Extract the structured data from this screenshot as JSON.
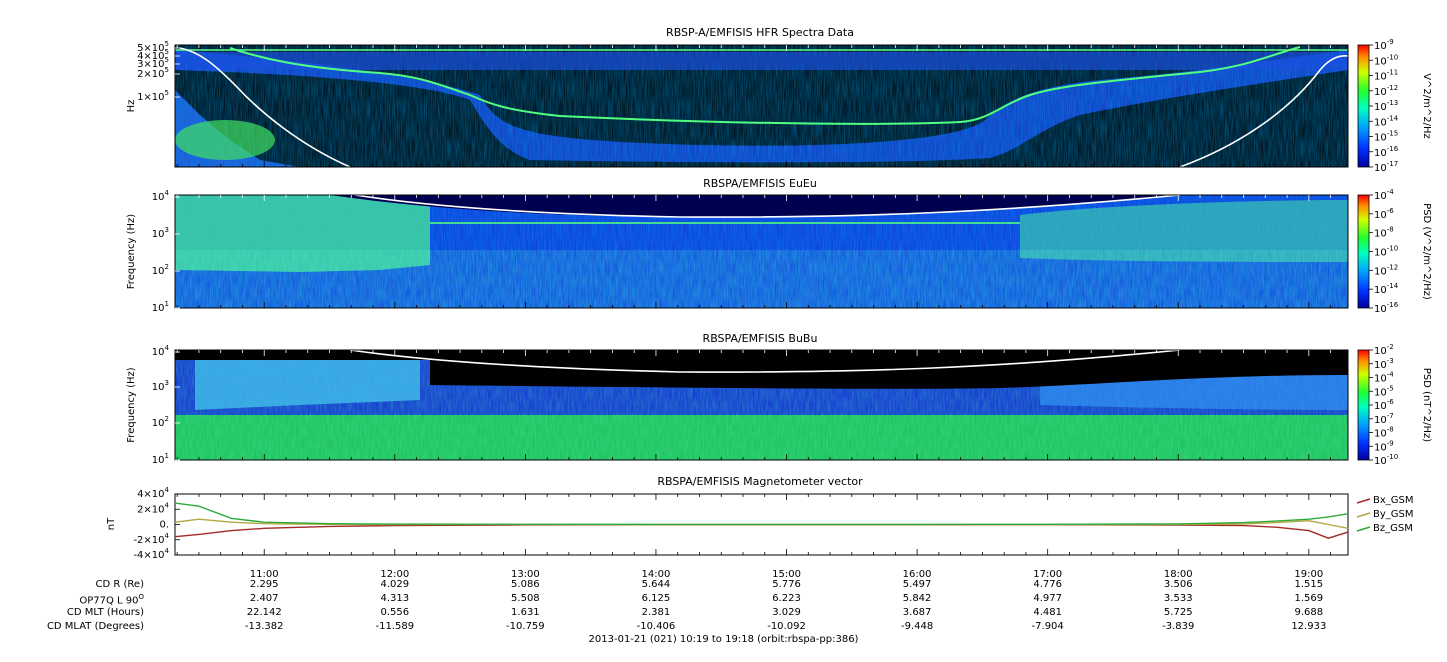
{
  "panels": [
    {
      "id": "hfr",
      "title": "RBSP-A/EMFISIS  HFR Spectra Data",
      "ylabel": "Hz",
      "y_ticks": [
        {
          "label": "5×10",
          "exp": "5"
        },
        {
          "label": "4×10",
          "exp": "5"
        },
        {
          "label": "3×10",
          "exp": "5"
        },
        {
          "label": "2×10",
          "exp": "5"
        },
        {
          "label": "1×10",
          "exp": "5"
        }
      ],
      "colorbar_label": "V^2/m^2/Hz",
      "colorbar_ticks": [
        "-9",
        "-10",
        "-11",
        "-12",
        "-13",
        "-14",
        "-15",
        "-16",
        "-17"
      ]
    },
    {
      "id": "eueu",
      "title": "RBSPA/EMFISIS  EuEu",
      "ylabel": "Frequency (Hz)",
      "y_ticks": [
        {
          "label": "10",
          "exp": "4"
        },
        {
          "label": "10",
          "exp": "3"
        },
        {
          "label": "10",
          "exp": "2"
        },
        {
          "label": "10",
          "exp": "1"
        }
      ],
      "colorbar_label": "PSD (V^2/m^2/Hz)",
      "colorbar_ticks": [
        "-4",
        "-6",
        "-8",
        "-10",
        "-12",
        "-14",
        "-16"
      ]
    },
    {
      "id": "bubu",
      "title": "RBSPA/EMFISIS  BuBu",
      "ylabel": "Frequency (Hz)",
      "y_ticks": [
        {
          "label": "10",
          "exp": "4"
        },
        {
          "label": "10",
          "exp": "3"
        },
        {
          "label": "10",
          "exp": "2"
        },
        {
          "label": "10",
          "exp": "1"
        }
      ],
      "colorbar_label": "PSD (nT^2/Hz)",
      "colorbar_ticks": [
        "-2",
        "-3",
        "-4",
        "-5",
        "-6",
        "-7",
        "-8",
        "-9",
        "-10"
      ]
    }
  ],
  "chart_data": [
    {
      "type": "heatmap",
      "title": "RBSP-A/EMFISIS  HFR Spectra Data",
      "ylabel": "Hz",
      "ylim": [
        10000,
        500000
      ],
      "colorbar": {
        "label": "V^2/m^2/Hz",
        "range": [
          -17,
          -9
        ]
      },
      "x_range": [
        "10:19",
        "19:18"
      ]
    },
    {
      "type": "heatmap",
      "title": "RBSPA/EMFISIS  EuEu",
      "ylabel": "Frequency (Hz)",
      "ylim": [
        10,
        10000
      ],
      "colorbar": {
        "label": "PSD (V^2/m^2/Hz)",
        "range": [
          -16,
          -4
        ]
      },
      "x_range": [
        "10:19",
        "19:18"
      ]
    },
    {
      "type": "heatmap",
      "title": "RBSPA/EMFISIS  BuBu",
      "ylabel": "Frequency (Hz)",
      "ylim": [
        10,
        10000
      ],
      "colorbar": {
        "label": "PSD (nT^2/Hz)",
        "range": [
          -10,
          -2
        ]
      },
      "x_range": [
        "10:19",
        "19:18"
      ]
    },
    {
      "type": "line",
      "title": "RBSPA/EMFISIS  Magnetometer vector",
      "ylabel": "nT",
      "ylim": [
        -40000,
        40000
      ],
      "y_ticks": [
        {
          "label": "4×10",
          "exp": "4"
        },
        {
          "label": "2×10",
          "exp": "4"
        },
        {
          "label": "0.",
          "exp": ""
        },
        {
          "label": "-2×10",
          "exp": "4"
        },
        {
          "label": "-4×10",
          "exp": "4"
        }
      ],
      "x_hours": [
        10.3,
        10.5,
        10.75,
        11,
        11.5,
        12,
        13,
        14,
        15,
        16,
        17,
        18,
        18.5,
        18.75,
        19,
        19.15,
        19.3
      ],
      "series": [
        {
          "name": "Bx_GSM",
          "color": "#a52a2a",
          "values": [
            -16000,
            -13000,
            -8000,
            -5000,
            -2500,
            -1500,
            -500,
            -300,
            -200,
            -200,
            -300,
            -600,
            -1500,
            -3500,
            -8000,
            -18000,
            -10000
          ]
        },
        {
          "name": "By_GSM",
          "color": "#b5a642",
          "values": [
            3000,
            7000,
            3000,
            1000,
            300,
            100,
            0,
            0,
            0,
            0,
            0,
            100,
            800,
            2500,
            5000,
            0,
            -5000
          ]
        },
        {
          "name": "Bz_GSM",
          "color": "#2eaa3a",
          "values": [
            28000,
            24000,
            8000,
            3000,
            1000,
            500,
            200,
            100,
            100,
            100,
            200,
            800,
            2500,
            4500,
            7000,
            10000,
            14000
          ]
        }
      ]
    }
  ],
  "x_axis": {
    "start_hour": 10.3167,
    "end_hour": 19.3,
    "labels": [
      "11:00",
      "12:00",
      "13:00",
      "14:00",
      "15:00",
      "16:00",
      "17:00",
      "18:00",
      "19:00"
    ],
    "label_hours": [
      11,
      12,
      13,
      14,
      15,
      16,
      17,
      18,
      19
    ]
  },
  "magnetometer": {
    "title": "RBSPA/EMFISIS  Magnetometer vector",
    "ylabel": "nT",
    "legend": [
      "Bx_GSM",
      "By_GSM",
      "Bz_GSM"
    ]
  },
  "ephemeris": {
    "rows": [
      {
        "label": "CD R (Re)",
        "values": [
          "2.295",
          "4.029",
          "5.086",
          "5.644",
          "5.776",
          "5.497",
          "4.776",
          "3.506",
          "1.515"
        ]
      },
      {
        "label": "OP77Q L 90",
        "label_sup": "O",
        "values": [
          "2.407",
          "4.313",
          "5.508",
          "6.125",
          "6.223",
          "5.842",
          "4.977",
          "3.533",
          "1.569"
        ]
      },
      {
        "label": "CD MLT (Hours)",
        "values": [
          "22.142",
          "0.556",
          "1.631",
          "2.381",
          "3.029",
          "3.687",
          "4.481",
          "5.725",
          "9.688"
        ]
      },
      {
        "label": "CD MLAT (Degrees)",
        "values": [
          "-13.382",
          "-11.589",
          "-10.759",
          "-10.406",
          "-10.092",
          "-9.448",
          "-7.904",
          "-3.839",
          "12.933"
        ]
      }
    ]
  },
  "footer": "2013-01-21 (021) 10:19 to 19:18 (orbit:rbspa-pp:386)"
}
